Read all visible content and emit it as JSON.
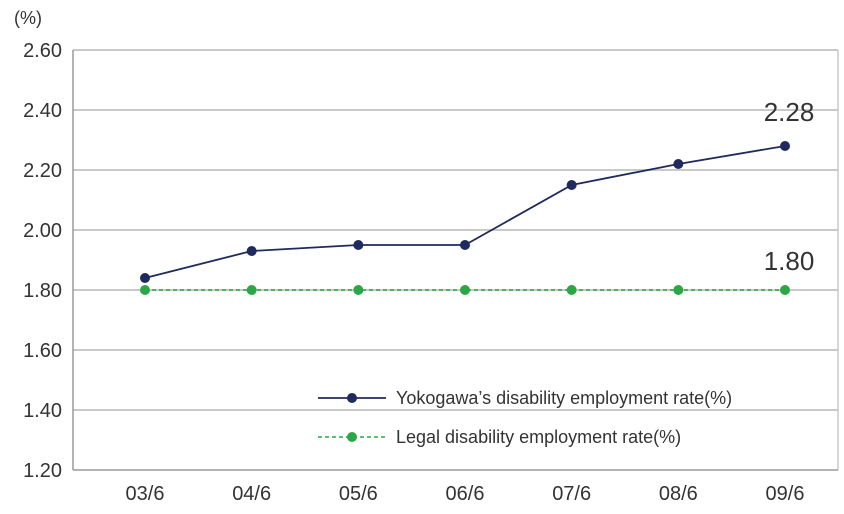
{
  "chart_data": {
    "type": "line",
    "title": "",
    "xlabel": "",
    "ylabel": "(%)",
    "categories": [
      "03/6",
      "04/6",
      "05/6",
      "06/6",
      "07/6",
      "08/6",
      "09/6"
    ],
    "ylim": [
      1.2,
      2.6
    ],
    "yticks": [
      1.2,
      1.4,
      1.6,
      1.8,
      2.0,
      2.2,
      2.4,
      2.6
    ],
    "ytick_labels": [
      "1.20",
      "1.40",
      "1.60",
      "1.80",
      "2.00",
      "2.20",
      "2.40",
      "2.60"
    ],
    "grid": "horizontal",
    "legend_position": "bottom-right",
    "series": [
      {
        "name": "Yokogawa’s disability employment rate(%)",
        "values": [
          1.84,
          1.93,
          1.95,
          1.95,
          2.15,
          2.22,
          2.28
        ],
        "color": "#1f2a5e",
        "line_style": "solid",
        "end_label": "2.28"
      },
      {
        "name": "Legal disability employment rate(%)",
        "values": [
          1.8,
          1.8,
          1.8,
          1.8,
          1.8,
          1.8,
          1.8
        ],
        "color": "#2aa845",
        "line_style": "dashed",
        "end_label": "1.80"
      }
    ]
  }
}
